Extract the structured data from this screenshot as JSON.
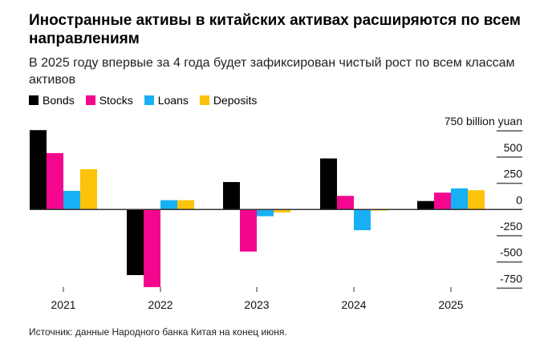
{
  "title": "Иностранные активы в китайских активах расширяются по всем направлениям",
  "subtitle": "В 2025 году впервые за 4 года будет зафиксирован чистый рост по всем классам активов",
  "source": "Источник: данные Народного банка Китая на конец июня.",
  "chart_data": {
    "type": "bar",
    "categories": [
      "2021",
      "2022",
      "2023",
      "2024",
      "2025"
    ],
    "ylabel": "billion yuan",
    "ylim": [
      -750,
      750
    ],
    "yticks": [
      750,
      500,
      250,
      0,
      -250,
      -500,
      -750
    ],
    "ytick_labels": [
      "750 billion yuan",
      "500",
      "250",
      "0",
      "-250",
      "-500",
      "-750"
    ],
    "legend_position": "top-left",
    "series": [
      {
        "name": "Bonds",
        "color": "#000000",
        "values": [
          757,
          -625,
          262,
          487,
          81
        ]
      },
      {
        "name": "Stocks",
        "color": "#f5068f",
        "values": [
          538,
          -740,
          -401,
          130,
          161
        ]
      },
      {
        "name": "Loans",
        "color": "#18b0f5",
        "values": [
          178,
          89,
          -64,
          -197,
          201
        ]
      },
      {
        "name": "Deposits",
        "color": "#fdc20a",
        "values": [
          385,
          89,
          -28,
          -11,
          184
        ]
      }
    ]
  }
}
